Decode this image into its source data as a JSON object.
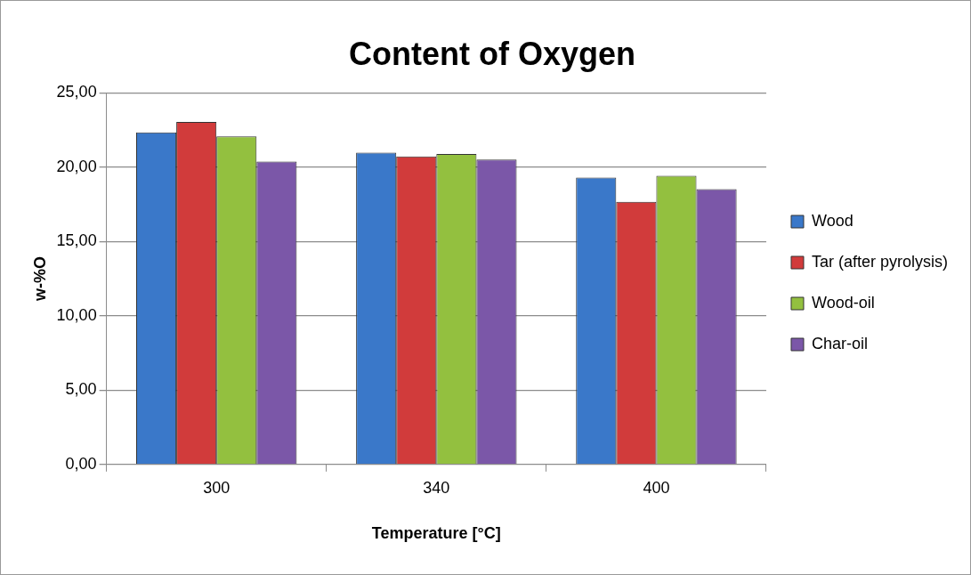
{
  "chart_data": {
    "type": "bar",
    "title": "Content of Oxygen",
    "xlabel": "Temperature [°C]",
    "ylabel": "w-%O",
    "categories": [
      "300",
      "340",
      "400"
    ],
    "series": [
      {
        "name": "Wood",
        "color": "#3a78c9",
        "values": [
          22.33,
          20.97,
          19.3
        ]
      },
      {
        "name": "Tar (after pyrolysis)",
        "color": "#d13b3b",
        "values": [
          23.04,
          20.72,
          17.67
        ]
      },
      {
        "name": "Wood-oil",
        "color": "#93c03f",
        "values": [
          22.06,
          20.88,
          19.41
        ]
      },
      {
        "name": "Char-oil",
        "color": "#7b57a8",
        "values": [
          20.37,
          20.5,
          18.51
        ]
      }
    ],
    "ylim": [
      0,
      25
    ],
    "yticks": [
      {
        "value": 0,
        "label": "0,00"
      },
      {
        "value": 5,
        "label": "5,00"
      },
      {
        "value": 10,
        "label": "10,00"
      },
      {
        "value": 15,
        "label": "15,00"
      },
      {
        "value": 20,
        "label": "20,00"
      },
      {
        "value": 25,
        "label": "25,00"
      }
    ],
    "grid": "y",
    "legend": "right"
  }
}
